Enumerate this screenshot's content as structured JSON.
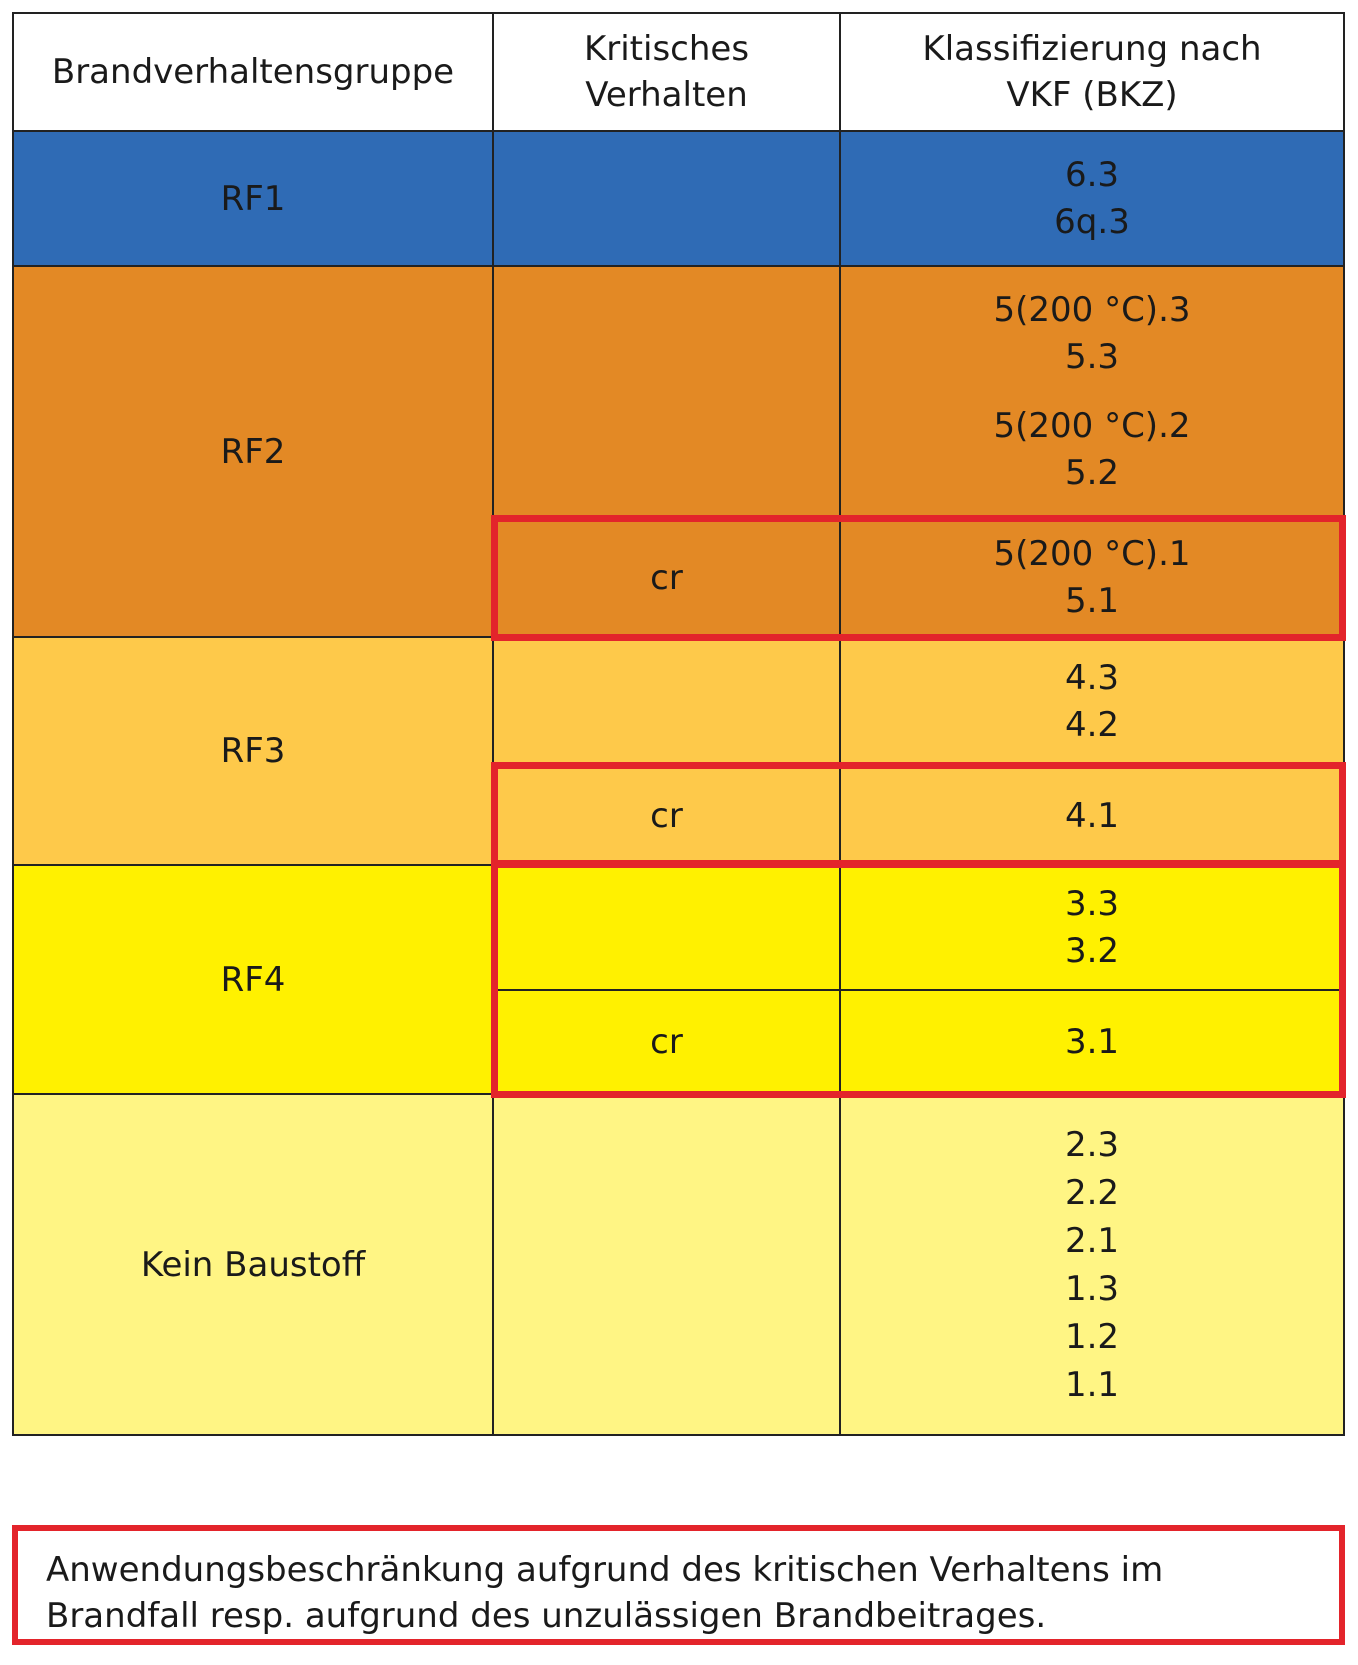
{
  "header": {
    "group": "Brandverhaltensgruppe",
    "critical_line1": "Kritisches",
    "critical_line2": "Verhalten",
    "class_line1": "Klassifizierung nach",
    "class_line2": "VKF (BKZ)"
  },
  "rows": {
    "rf1": {
      "group": "RF1",
      "classes": [
        "6.3",
        "6q.3"
      ]
    },
    "rf2": {
      "group": "RF2",
      "classes_a": [
        "5(200 °C).3",
        "5.3"
      ],
      "classes_b": [
        "5(200 °C).2",
        "5.2"
      ],
      "critical": "cr",
      "classes_cr": [
        "5(200 °C).1",
        "5.1"
      ]
    },
    "rf3": {
      "group": "RF3",
      "classes": [
        "4.3",
        "4.2"
      ],
      "critical": "cr",
      "classes_cr": [
        "4.1"
      ]
    },
    "rf4": {
      "group": "RF4",
      "classes": [
        "3.3",
        "3.2"
      ],
      "critical": "cr",
      "classes_cr": [
        "3.1"
      ]
    },
    "kein": {
      "group": "Kein Baustoff",
      "classes": [
        "2.3",
        "2.2",
        "2.1",
        "1.3",
        "1.2",
        "1.1"
      ]
    }
  },
  "legend": {
    "line1": "Anwendungsbeschränkung aufgrund des kritischen Verhaltens im",
    "line2": "Brandfall resp. aufgrund des unzulässigen Brandbeitrages."
  },
  "colors": {
    "rf1": "#2f6bb5",
    "rf2": "#e38925",
    "rf3": "#fec94a",
    "rf4": "#fff100",
    "kein_baustoff": "#fff584",
    "highlight_border": "#e3242b"
  }
}
